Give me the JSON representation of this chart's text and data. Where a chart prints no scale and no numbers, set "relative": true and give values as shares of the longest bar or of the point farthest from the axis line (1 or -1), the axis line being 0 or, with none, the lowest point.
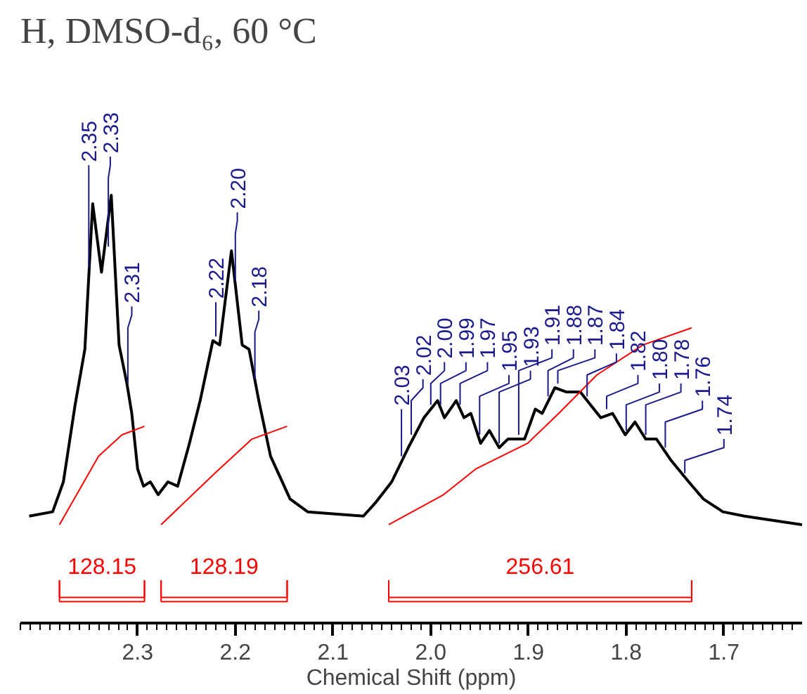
{
  "chart_data": {
    "type": "line",
    "title": "H, DMSO-d₆, 60 °C",
    "xlabel": "Chemical Shift (ppm)",
    "relative": true,
    "xlim": [
      2.42,
      1.62
    ],
    "xticks": [
      2.3,
      2.2,
      2.1,
      {
        "value": 2.0,
        "label": "2.0"
      },
      1.9,
      1.8,
      1.7
    ],
    "series": [
      {
        "color": "#000000",
        "x": [
          2.411,
          2.387,
          2.376,
          2.364,
          2.354,
          2.346,
          2.337,
          2.327,
          2.319,
          2.311,
          2.306,
          2.3,
          2.294,
          2.287,
          2.279,
          2.269,
          2.259,
          2.247,
          2.236,
          2.223,
          2.216,
          2.204,
          2.193,
          2.186,
          2.176,
          2.164,
          2.144,
          2.126,
          2.069,
          2.057,
          2.04,
          2.023,
          2.007,
          1.993,
          1.986,
          1.974,
          1.966,
          1.959,
          1.949,
          1.94,
          1.93,
          1.921,
          1.904,
          1.893,
          1.886,
          1.873,
          1.861,
          1.847,
          1.826,
          1.814,
          1.801,
          1.791,
          1.78,
          1.769,
          1.754,
          1.736,
          1.721,
          1.701,
          1.679,
          1.62
        ],
        "values": [
          0.25,
          0.26,
          0.33,
          0.51,
          0.64,
          0.98,
          0.82,
          1,
          0.65,
          0.56,
          0.49,
          0.36,
          0.32,
          0.33,
          0.3,
          0.33,
          0.32,
          0.42,
          0.52,
          0.66,
          0.65,
          0.87,
          0.65,
          0.64,
          0.52,
          0.39,
          0.29,
          0.26,
          0.25,
          0.28,
          0.33,
          0.41,
          0.48,
          0.52,
          0.48,
          0.52,
          0.48,
          0.49,
          0.42,
          0.45,
          0.41,
          0.43,
          0.43,
          0.5,
          0.49,
          0.55,
          0.54,
          0.54,
          0.48,
          0.49,
          0.44,
          0.47,
          0.43,
          0.43,
          0.38,
          0.33,
          0.29,
          0.26,
          0.25,
          0.23
        ]
      },
      {
        "color": "#ff0000",
        "x": [
          2.38,
          2.34,
          2.316,
          2.293
        ],
        "values": [
          0.23,
          0.39,
          0.44,
          0.46
        ]
      },
      {
        "color": "#ff0000",
        "x": [
          2.276,
          2.221,
          2.183,
          2.147
        ],
        "values": [
          0.23,
          0.35,
          0.43,
          0.46
        ]
      },
      {
        "color": "#ff0000",
        "x": [
          2.043,
          1.987,
          1.954,
          1.901,
          1.869,
          1.83,
          1.783,
          1.733
        ],
        "values": [
          0.23,
          0.3,
          0.36,
          0.42,
          0.49,
          0.58,
          0.65,
          0.69
        ]
      }
    ],
    "annotations": [
      "128.15",
      "128.19",
      "256.61",
      {
        "text": "2.35",
        "x": 2.35,
        "y": 0.82
      },
      {
        "text": "2.33",
        "x": 2.33,
        "y": 0.87
      },
      {
        "text": "2.31",
        "x": 2.31,
        "y": 0.55
      },
      {
        "text": "2.22",
        "x": 2.22,
        "y": 0.66
      },
      {
        "text": "2.20",
        "x": 2.2,
        "y": 0.79
      },
      {
        "text": "2.18",
        "x": 2.18,
        "y": 0.56
      },
      {
        "text": "2.03",
        "x": 2.03,
        "y": 0.38
      },
      {
        "text": "2.02",
        "x": 2.02,
        "y": 0.43
      },
      {
        "text": "2.00",
        "x": 2.0,
        "y": 0.5
      },
      {
        "text": "1.99",
        "x": 1.99,
        "y": 0.5
      },
      {
        "text": "1.97",
        "x": 1.97,
        "y": 0.5
      },
      {
        "text": "1.95",
        "x": 1.95,
        "y": 0.43
      },
      {
        "text": "1.93",
        "x": 1.93,
        "y": 0.41
      },
      {
        "text": "1.91",
        "x": 1.91,
        "y": 0.43
      },
      {
        "text": "1.88",
        "x": 1.88,
        "y": 0.52
      },
      {
        "text": "1.87",
        "x": 1.87,
        "y": 0.55
      },
      {
        "text": "1.84",
        "x": 1.84,
        "y": 0.52
      },
      {
        "text": "1.82",
        "x": 1.82,
        "y": 0.49
      },
      {
        "text": "1.80",
        "x": 1.8,
        "y": 0.44
      },
      {
        "text": "1.78",
        "x": 1.78,
        "y": 0.43
      },
      {
        "text": "1.76",
        "x": 1.76,
        "y": 0.4
      },
      {
        "text": "1.74",
        "x": 1.74,
        "y": 0.34
      }
    ]
  }
}
